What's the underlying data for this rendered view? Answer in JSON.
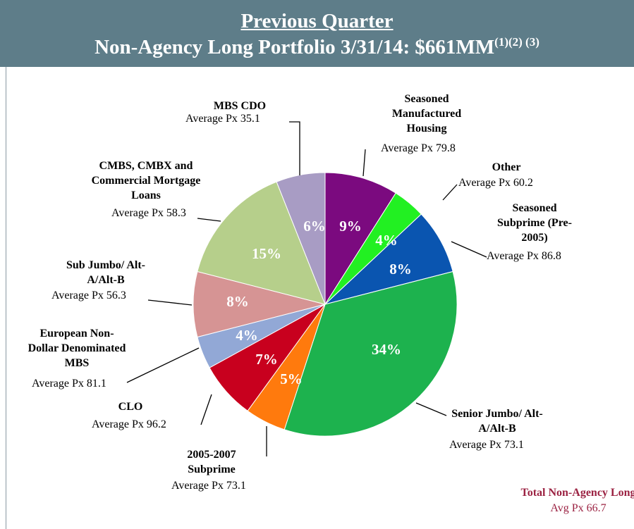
{
  "chart_data": {
    "type": "pie",
    "heading": "Previous Quarter",
    "title": "Non-Agency Long Portfolio 3/31/14: $661MM",
    "title_note": "(1)(2) (3)",
    "categories": [
      "Seasoned Manufactured Housing",
      "Other",
      "Seasoned Subprime (Pre-2005)",
      "Senior Jumbo/ Alt-A/Alt-B",
      "2005-2007 Subprime",
      "CLO",
      "European Non-Dollar Denominated MBS",
      "Sub Jumbo/ Alt-A/Alt-B",
      "CMBS, CMBX and Commercial Mortgage Loans",
      "MBS CDO"
    ],
    "details": [
      "Average Px 79.8",
      "Average Px 60.2",
      "Average Px 86.8",
      "Average Px 73.1",
      "Average Px 73.1",
      "Average Px 96.2",
      "Average Px 81.1",
      "Average Px 56.3",
      "Average Px 58.3",
      "Average Px 35.1"
    ],
    "values": [
      9,
      4,
      8,
      34,
      5,
      7,
      4,
      8,
      15,
      6
    ],
    "value_labels": [
      "9%",
      "4%",
      "8%",
      "34%",
      "5%",
      "7%",
      "4%",
      "8%",
      "15%",
      "6%"
    ],
    "colors": [
      "#7b0a7f",
      "#22f022",
      "#0a55b0",
      "#1db24e",
      "#ff7a0d",
      "#c8001e",
      "#92a8d6",
      "#d69494",
      "#b6cf8b",
      "#a89cc4"
    ],
    "total_label": "Total Non-Agency Long",
    "total_detail": "Avg Px 66.7"
  }
}
